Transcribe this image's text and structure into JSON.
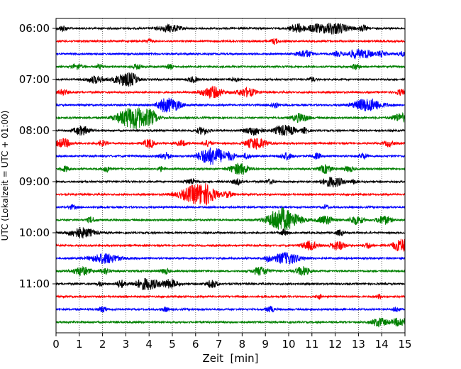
{
  "chart_data": {
    "type": "line",
    "title": "",
    "xlabel": "Zeit  [min]",
    "ylabel": "UTC (Lokalzeit = UTC + 01:00)",
    "xlim": [
      0,
      15
    ],
    "x_ticks": [
      0,
      1,
      2,
      3,
      4,
      5,
      6,
      7,
      8,
      9,
      10,
      11,
      12,
      13,
      14,
      15
    ],
    "y_tick_labels": [
      "06:00",
      "07:00",
      "08:00",
      "09:00",
      "10:00",
      "11:00"
    ],
    "grid": "vertical dotted",
    "row_interval_minutes": 15,
    "colors": [
      "#000000",
      "#ff0000",
      "#0000ff",
      "#008000"
    ],
    "traces": [
      {
        "start": "06:00",
        "color": "#000000",
        "events": [
          [
            0.3,
            0.5,
            4
          ],
          [
            4.9,
            1.4,
            5
          ],
          [
            10.4,
            1.0,
            6
          ],
          [
            11.1,
            0.7,
            4
          ],
          [
            11.9,
            2.0,
            8
          ],
          [
            13.2,
            0.5,
            4
          ]
        ]
      },
      {
        "start": "06:15",
        "color": "#ff0000",
        "events": [
          [
            4.0,
            0.4,
            3
          ],
          [
            9.4,
            0.4,
            4
          ]
        ]
      },
      {
        "start": "06:30",
        "color": "#0000ff",
        "events": [
          [
            10.7,
            1.0,
            5
          ],
          [
            12.1,
            0.6,
            3
          ],
          [
            12.9,
            1.1,
            6
          ],
          [
            13.4,
            0.7,
            4
          ],
          [
            14.0,
            0.7,
            4
          ],
          [
            14.9,
            0.6,
            3
          ]
        ]
      },
      {
        "start": "06:45",
        "color": "#008000",
        "events": [
          [
            0.9,
            0.6,
            4
          ],
          [
            1.9,
            0.5,
            3
          ],
          [
            3.5,
            0.5,
            4
          ],
          [
            4.9,
            0.4,
            3
          ],
          [
            12.9,
            0.5,
            4
          ]
        ]
      },
      {
        "start": "07:00",
        "color": "#000000",
        "events": [
          [
            1.7,
            1.0,
            5
          ],
          [
            2.9,
            1.3,
            8
          ],
          [
            3.3,
            0.7,
            5
          ],
          [
            5.9,
            0.6,
            4
          ],
          [
            7.7,
            0.5,
            3
          ],
          [
            11.0,
            0.4,
            3
          ]
        ]
      },
      {
        "start": "07:15",
        "color": "#ff0000",
        "events": [
          [
            0.3,
            0.6,
            4
          ],
          [
            6.7,
            1.4,
            8
          ],
          [
            8.2,
            1.2,
            6
          ],
          [
            14.8,
            0.5,
            4
          ]
        ]
      },
      {
        "start": "07:30",
        "color": "#0000ff",
        "events": [
          [
            4.6,
            0.8,
            6
          ],
          [
            5.0,
            1.2,
            8
          ],
          [
            9.4,
            0.5,
            4
          ],
          [
            13.4,
            1.8,
            9
          ]
        ]
      },
      {
        "start": "07:45",
        "color": "#008000",
        "events": [
          [
            3.0,
            1.6,
            6
          ],
          [
            3.5,
            1.8,
            12
          ],
          [
            4.1,
            0.8,
            6
          ],
          [
            10.5,
            1.0,
            6
          ],
          [
            14.8,
            1.0,
            6
          ]
        ]
      },
      {
        "start": "08:00",
        "color": "#000000",
        "events": [
          [
            1.1,
            1.0,
            6
          ],
          [
            6.3,
            0.8,
            5
          ],
          [
            8.5,
            1.1,
            6
          ],
          [
            9.6,
            0.8,
            5
          ],
          [
            10.0,
            0.9,
            6
          ],
          [
            10.7,
            0.5,
            4
          ]
        ]
      },
      {
        "start": "08:15",
        "color": "#ff0000",
        "events": [
          [
            0.3,
            1.0,
            6
          ],
          [
            2.0,
            0.5,
            4
          ],
          [
            4.0,
            0.7,
            6
          ],
          [
            5.4,
            0.6,
            4
          ],
          [
            6.5,
            0.6,
            4
          ],
          [
            8.6,
            1.3,
            8
          ],
          [
            14.3,
            0.6,
            4
          ]
        ]
      },
      {
        "start": "08:30",
        "color": "#0000ff",
        "events": [
          [
            4.7,
            0.7,
            5
          ],
          [
            6.4,
            1.1,
            8
          ],
          [
            6.9,
            1.1,
            10
          ],
          [
            7.5,
            0.7,
            5
          ],
          [
            8.2,
            0.5,
            4
          ],
          [
            9.9,
            0.7,
            5
          ],
          [
            11.2,
            0.5,
            4
          ],
          [
            13.2,
            0.5,
            4
          ]
        ]
      },
      {
        "start": "08:45",
        "color": "#008000",
        "events": [
          [
            0.4,
            0.5,
            4
          ],
          [
            2.2,
            0.5,
            4
          ],
          [
            4.5,
            0.4,
            3
          ],
          [
            7.9,
            1.2,
            8
          ],
          [
            11.6,
            0.8,
            6
          ],
          [
            12.6,
            0.6,
            4
          ]
        ]
      },
      {
        "start": "09:00",
        "color": "#000000",
        "events": [
          [
            5.8,
            0.7,
            4
          ],
          [
            7.8,
            0.6,
            4
          ],
          [
            9.2,
            0.5,
            3
          ],
          [
            11.9,
            1.3,
            7
          ],
          [
            12.8,
            0.4,
            3
          ]
        ]
      },
      {
        "start": "09:15",
        "color": "#ff0000",
        "events": [
          [
            6.0,
            2.0,
            12
          ],
          [
            6.5,
            1.2,
            7
          ],
          [
            7.4,
            0.6,
            4
          ]
        ]
      },
      {
        "start": "09:30",
        "color": "#0000ff",
        "events": [
          [
            0.7,
            0.5,
            3
          ],
          [
            11.6,
            0.4,
            3
          ]
        ]
      },
      {
        "start": "09:45",
        "color": "#008000",
        "events": [
          [
            1.5,
            0.5,
            4
          ],
          [
            9.5,
            0.9,
            5
          ],
          [
            9.8,
            2.0,
            14
          ],
          [
            11.6,
            1.0,
            6
          ],
          [
            12.9,
            0.9,
            6
          ],
          [
            14.1,
            0.9,
            6
          ]
        ]
      },
      {
        "start": "10:00",
        "color": "#000000",
        "events": [
          [
            1.1,
            1.6,
            7
          ],
          [
            9.8,
            0.5,
            4
          ],
          [
            12.2,
            0.5,
            4
          ]
        ]
      },
      {
        "start": "10:15",
        "color": "#ff0000",
        "events": [
          [
            10.9,
            1.0,
            6
          ],
          [
            12.1,
            1.0,
            6
          ],
          [
            13.4,
            0.5,
            4
          ],
          [
            14.9,
            1.3,
            9
          ]
        ]
      },
      {
        "start": "10:30",
        "color": "#0000ff",
        "events": [
          [
            2.1,
            1.8,
            7
          ],
          [
            9.9,
            1.7,
            8
          ],
          [
            9.1,
            0.4,
            3
          ]
        ]
      },
      {
        "start": "10:45",
        "color": "#008000",
        "events": [
          [
            1.1,
            1.1,
            6
          ],
          [
            2.1,
            0.6,
            4
          ],
          [
            8.8,
            1.0,
            6
          ],
          [
            10.6,
            0.9,
            6
          ],
          [
            4.7,
            0.5,
            4
          ]
        ]
      },
      {
        "start": "11:00",
        "color": "#000000",
        "events": [
          [
            2.8,
            0.6,
            5
          ],
          [
            3.9,
            1.5,
            8
          ],
          [
            4.9,
            1.0,
            6
          ],
          [
            6.7,
            0.8,
            5
          ],
          [
            1.9,
            0.4,
            3
          ]
        ]
      },
      {
        "start": "11:15",
        "color": "#ff0000",
        "events": [
          [
            11.3,
            0.4,
            3
          ],
          [
            13.9,
            0.4,
            3
          ]
        ]
      },
      {
        "start": "11:30",
        "color": "#0000ff",
        "events": [
          [
            2.0,
            0.5,
            4
          ],
          [
            4.7,
            0.4,
            3
          ],
          [
            9.2,
            0.5,
            4
          ],
          [
            14.6,
            0.4,
            3
          ]
        ]
      },
      {
        "start": "11:45",
        "color": "#008000",
        "events": [
          [
            13.9,
            1.0,
            6
          ],
          [
            14.8,
            1.0,
            6
          ]
        ]
      }
    ]
  }
}
